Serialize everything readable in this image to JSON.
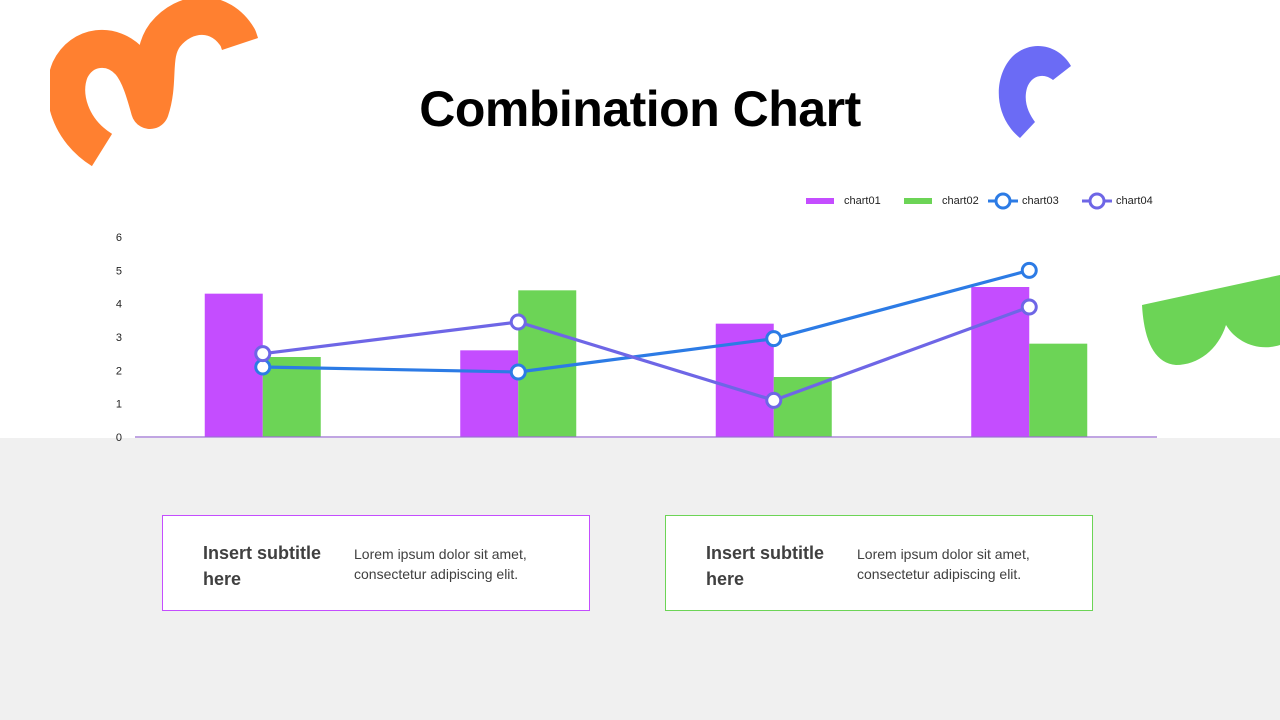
{
  "title": "Combination Chart",
  "colors": {
    "chart01": "#c44dff",
    "chart02": "#6cd456",
    "chart03": "#2c7be5",
    "chart04": "#6e66e6",
    "axis": "#9a6fd0",
    "band": "#f0f0f0",
    "deco_orange": "#ff8030",
    "deco_blue": "#6b6bf5",
    "deco_green": "#6cd456"
  },
  "chart_data": {
    "type": "bar",
    "categories": [
      "",
      "",
      "",
      ""
    ],
    "series": [
      {
        "name": "chart01",
        "type": "bar",
        "values": [
          4.3,
          2.6,
          3.4,
          4.5
        ]
      },
      {
        "name": "chart02",
        "type": "bar",
        "values": [
          2.4,
          4.4,
          1.8,
          2.8
        ]
      },
      {
        "name": "chart03",
        "type": "line",
        "values": [
          2.1,
          1.95,
          2.95,
          5.0
        ]
      },
      {
        "name": "chart04",
        "type": "line",
        "values": [
          2.5,
          3.45,
          1.1,
          3.9
        ]
      }
    ],
    "yticks": [
      "0",
      "1",
      "2",
      "3",
      "4",
      "5",
      "6"
    ],
    "ylim": [
      0,
      6
    ],
    "grid": false,
    "legend": "top-right"
  },
  "cards": [
    {
      "title": "Insert subtitle here",
      "text": "Lorem ipsum dolor sit amet, consectetur adipiscing elit."
    },
    {
      "title": "Insert subtitle here",
      "text": "Lorem ipsum dolor sit amet, consectetur adipiscing elit."
    }
  ]
}
